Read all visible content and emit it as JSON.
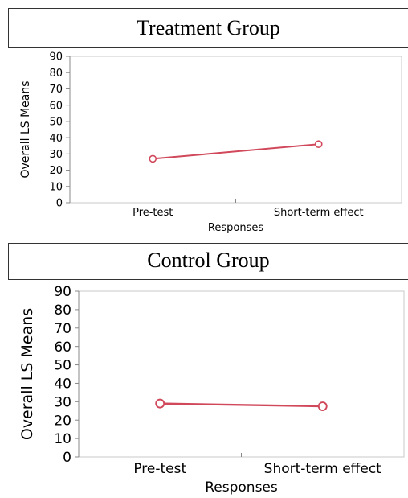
{
  "chart_data": [
    {
      "type": "line",
      "title": "Treatment Group",
      "xlabel": "Responses",
      "ylabel": "Overall  LS Means",
      "categories": [
        "Pre-test",
        "Short-term effect"
      ],
      "series": [
        {
          "values": [
            27,
            36
          ]
        }
      ],
      "ylim": [
        0,
        90
      ],
      "yticks": [
        0,
        10,
        20,
        30,
        40,
        50,
        60,
        70,
        80,
        90
      ],
      "grid": false,
      "legend": "none",
      "line_color": "#d1485b"
    },
    {
      "type": "line",
      "title": "Control Group",
      "xlabel": "Responses",
      "ylabel": "Overall  LS Means",
      "categories": [
        "Pre-test",
        "Short-term effect"
      ],
      "series": [
        {
          "values": [
            29,
            27.5
          ]
        }
      ],
      "ylim": [
        0,
        90
      ],
      "yticks": [
        0,
        10,
        20,
        30,
        40,
        50,
        60,
        70,
        80,
        90
      ],
      "grid": false,
      "legend": "none",
      "line_color": "#d1485b"
    }
  ]
}
